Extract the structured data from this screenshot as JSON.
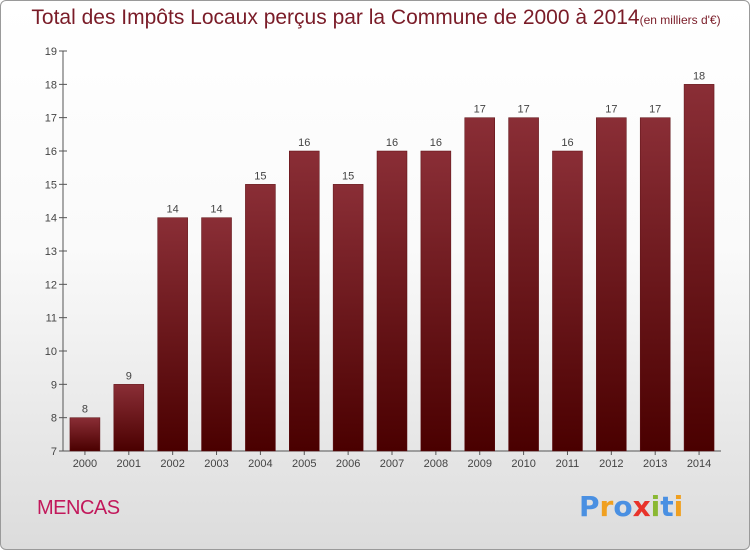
{
  "header": {
    "title": "Total des Impôts Locaux perçus par la Commune de 2000 à 2014",
    "unit_note": "(en milliers d'€)"
  },
  "footer": {
    "commune_name": "MENCAS",
    "logo_text": "Proxiti"
  },
  "colors": {
    "bar_top": "#8a2e36",
    "bar_bottom": "#4a0000",
    "title": "#7a1c28",
    "commune": "#c2185b",
    "logo_letters": [
      "#4a90e2",
      "#f0a020",
      "#4a90e2",
      "#e8332a",
      "#8ab833",
      "#4a90e2",
      "#f0a020"
    ]
  },
  "chart_data": {
    "type": "bar",
    "title": "Total des Impôts Locaux perçus par la Commune de 2000 à 2014",
    "subtitle": "(en milliers d'€)",
    "xlabel": "",
    "ylabel": "",
    "categories": [
      "2000",
      "2001",
      "2002",
      "2003",
      "2004",
      "2005",
      "2006",
      "2007",
      "2008",
      "2009",
      "2010",
      "2011",
      "2012",
      "2013",
      "2014"
    ],
    "values": [
      8,
      9,
      14,
      14,
      15,
      16,
      15,
      16,
      16,
      17,
      17,
      16,
      17,
      17,
      18
    ],
    "ylim": [
      7,
      19
    ],
    "yticks": [
      7,
      8,
      9,
      10,
      11,
      12,
      13,
      14,
      15,
      16,
      17,
      18,
      19
    ],
    "data_labels": [
      "8",
      "9",
      "14",
      "14",
      "15",
      "16",
      "15",
      "16",
      "16",
      "17",
      "17",
      "16",
      "17",
      "17",
      "18"
    ],
    "grid": false,
    "legend": "none"
  }
}
